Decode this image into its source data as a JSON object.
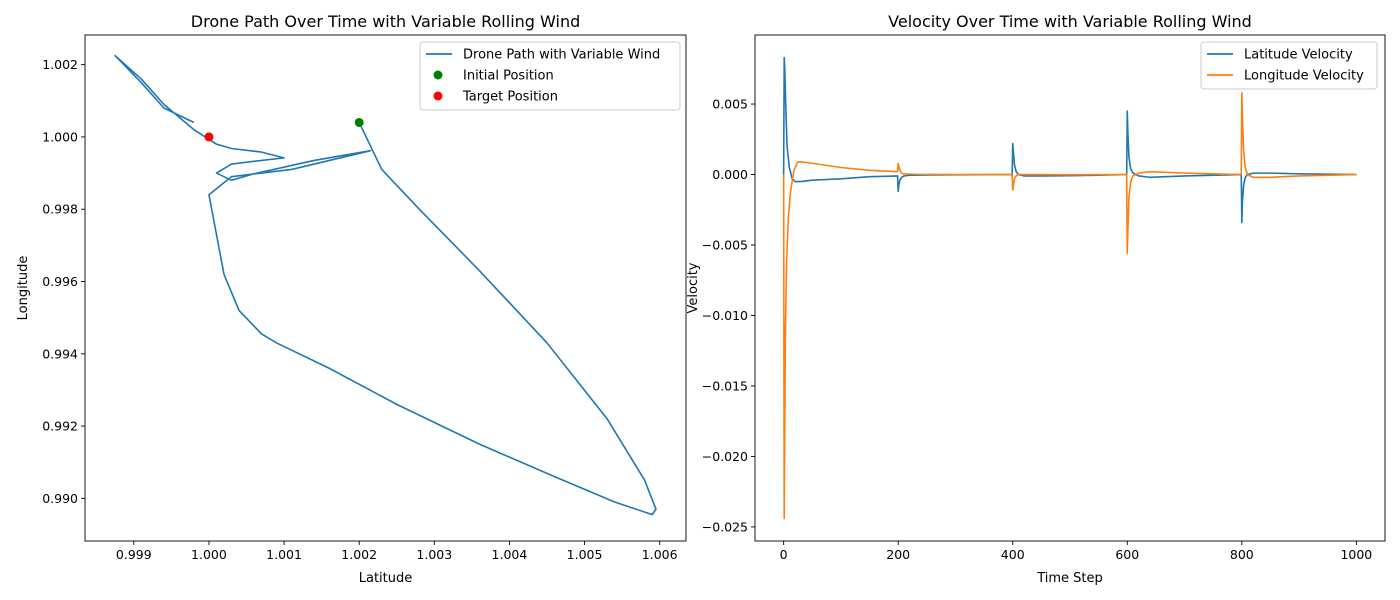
{
  "colors": {
    "blue": "#1f77b4",
    "orange": "#ff7f0e",
    "green": "#008000",
    "red": "#ff0000"
  },
  "chart_data": [
    {
      "type": "line",
      "title": "Drone Path Over Time with Variable Rolling Wind",
      "xlabel": "Latitude",
      "ylabel": "Longitude",
      "xlim": [
        0.99835,
        1.00635
      ],
      "ylim": [
        0.98882,
        1.00282
      ],
      "xticks": [
        0.999,
        1.0,
        1.001,
        1.002,
        1.003,
        1.004,
        1.005,
        1.006
      ],
      "xtick_labels": [
        "0.999",
        "1.000",
        "1.001",
        "1.002",
        "1.003",
        "1.004",
        "1.005",
        "1.006"
      ],
      "yticks": [
        0.99,
        0.992,
        0.994,
        0.996,
        0.998,
        1.0,
        1.002
      ],
      "ytick_labels": [
        "0.990",
        "0.992",
        "0.994",
        "0.996",
        "0.998",
        "1.000",
        "1.002"
      ],
      "legend_position": "top-right",
      "series": [
        {
          "name": "Drone Path with Variable Wind",
          "kind": "line",
          "color": "#1f77b4",
          "x": [
            1.002,
            1.0023,
            1.0028,
            1.0036,
            1.0045,
            1.0053,
            1.0058,
            1.00595,
            1.0059,
            1.0054,
            1.0046,
            1.0036,
            1.0025,
            1.0016,
            1.0009,
            1.0007,
            1.0004,
            1.0002,
            1.0001,
            1.0,
            1.0003,
            1.0011,
            1.00215,
            1.0014,
            1.0006,
            1.0003,
            1.0001,
            1.0003,
            1.0007,
            1.001,
            1.0007,
            1.0003,
            1.0001,
            0.9998,
            0.9994,
            0.9991,
            0.99875,
            0.9991,
            0.9994,
            0.9998
          ],
          "y": [
            1.0004,
            0.9991,
            0.998,
            0.9963,
            0.9943,
            0.9922,
            0.9905,
            0.9897,
            0.98955,
            0.9899,
            0.9906,
            0.9915,
            0.9926,
            0.9936,
            0.9943,
            0.99455,
            0.9952,
            0.9962,
            0.9973,
            0.9984,
            0.9989,
            0.9991,
            0.99962,
            0.99935,
            0.99898,
            0.9988,
            0.999,
            0.99925,
            0.99935,
            0.99942,
            0.99958,
            0.99968,
            0.9998,
            1.0002,
            1.0009,
            1.0016,
            1.00225,
            1.0015,
            1.0008,
            1.0004
          ]
        },
        {
          "name": "Initial Position",
          "kind": "scatter",
          "color": "#008000",
          "x": [
            1.002
          ],
          "y": [
            1.0004
          ]
        },
        {
          "name": "Target Position",
          "kind": "scatter",
          "color": "#ff0000",
          "x": [
            1.0
          ],
          "y": [
            1.0
          ]
        }
      ]
    },
    {
      "type": "line",
      "title": "Velocity Over Time with Variable Rolling Wind",
      "xlabel": "Time Step",
      "ylabel": "Velocity",
      "xlim": [
        -50,
        1050
      ],
      "ylim": [
        -0.026,
        0.0099
      ],
      "xticks": [
        0,
        200,
        400,
        600,
        800,
        1000
      ],
      "xtick_labels": [
        "0",
        "200",
        "400",
        "600",
        "800",
        "1000"
      ],
      "yticks": [
        0.005,
        0.0,
        -0.005,
        -0.01,
        -0.015,
        -0.02,
        -0.025
      ],
      "ytick_labels": [
        "0.005",
        "0.000",
        "−0.005",
        "−0.010",
        "−0.015",
        "−0.020",
        "−0.025"
      ],
      "legend_position": "top-right",
      "series": [
        {
          "name": "Latitude Velocity",
          "color": "#1f77b4",
          "x": [
            0,
            1,
            2,
            4,
            6,
            10,
            15,
            20,
            30,
            50,
            100,
            150,
            199,
            200,
            201,
            203,
            206,
            210,
            220,
            260,
            300,
            350,
            399,
            400,
            401,
            403,
            406,
            410,
            420,
            450,
            500,
            550,
            599,
            600,
            601,
            603,
            606,
            610,
            620,
            640,
            700,
            799,
            800,
            801,
            803,
            806,
            810,
            820,
            850,
            900,
            1000
          ],
          "y": [
            0.0,
            0.0083,
            0.0075,
            0.0045,
            0.002,
            0.0005,
            -0.0003,
            -0.0005,
            -0.0005,
            -0.0004,
            -0.0003,
            -0.00015,
            -0.0001,
            -0.0012,
            -0.0008,
            -0.0004,
            -0.0002,
            -0.0001,
            -5e-05,
            -3e-05,
            -2e-05,
            -1e-05,
            0.0,
            0.0022,
            0.0017,
            0.0007,
            0.0002,
            0.0,
            -0.0001,
            -0.0001,
            -8e-05,
            -5e-05,
            0.0,
            0.0045,
            0.003,
            0.0012,
            0.0004,
            0.0001,
            -0.0001,
            -0.0002,
            -0.0001,
            0.0,
            -0.0034,
            -0.002,
            -0.0008,
            -0.0002,
            0.0,
            0.0001,
            0.0001,
            5e-05,
            0.0
          ]
        },
        {
          "name": "Longitude Velocity",
          "color": "#ff7f0e",
          "x": [
            0,
            1,
            2,
            3,
            5,
            8,
            12,
            18,
            25,
            30,
            50,
            100,
            150,
            199,
            200,
            201,
            203,
            206,
            210,
            230,
            300,
            399,
            400,
            401,
            403,
            406,
            410,
            450,
            500,
            599,
            600,
            601,
            603,
            606,
            610,
            620,
            640,
            700,
            799,
            800,
            801,
            803,
            806,
            810,
            820,
            850,
            900,
            1000
          ],
          "y": [
            0.0,
            -0.0244,
            -0.018,
            -0.0115,
            -0.0065,
            -0.0032,
            -0.0012,
            0.0003,
            0.0009,
            0.0009,
            0.0008,
            0.0005,
            0.0003,
            0.0002,
            0.0008,
            0.0006,
            0.0003,
            0.0001,
            5e-05,
            2e-05,
            0.0,
            0.0,
            -0.0011,
            -0.0008,
            -0.0003,
            -0.0001,
            0.0,
            0.0,
            -2e-05,
            0.0,
            -0.0056,
            -0.004,
            -0.0016,
            -0.0005,
            -0.0001,
            0.0001,
            0.0002,
            0.0001,
            0.0,
            0.0058,
            0.0042,
            0.0018,
            0.0005,
            0.0,
            -0.0002,
            -0.0002,
            -0.0001,
            0.0
          ]
        }
      ]
    }
  ]
}
